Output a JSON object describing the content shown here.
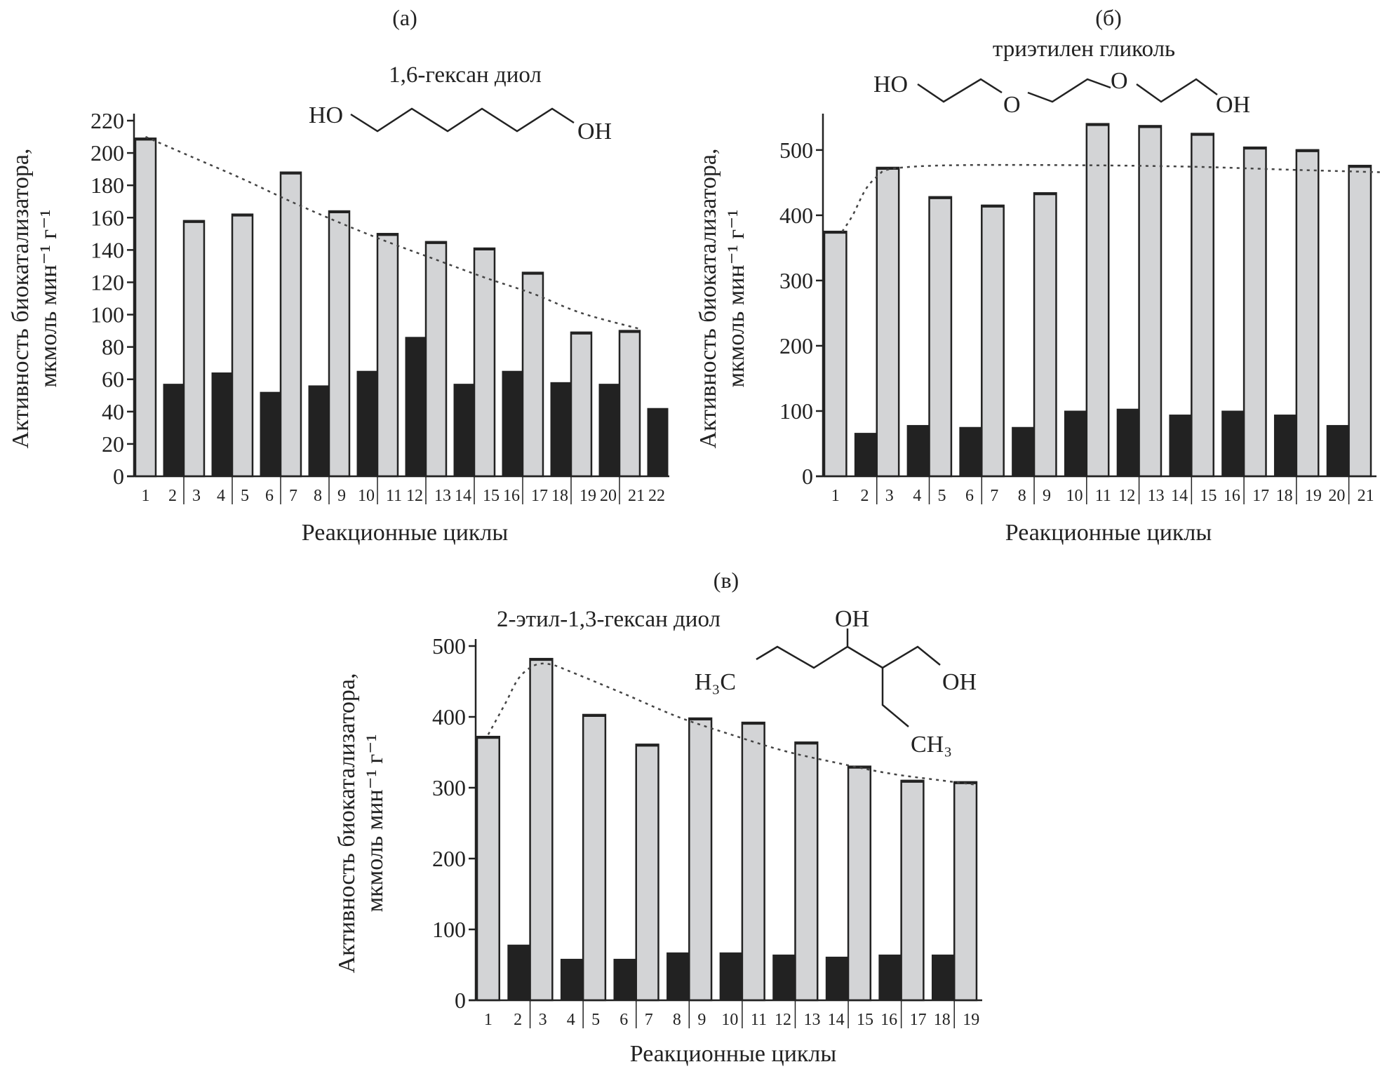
{
  "chart_data": [
    {
      "type": "bar",
      "panel_label": "(а)",
      "compound": "1,6-гексан диол",
      "structure_labels": {
        "left": "HO",
        "right": "OH"
      },
      "ylabel": [
        "Активность биокатализатора,",
        "мкмоль мин⁻¹ г⁻¹"
      ],
      "xlabel": "Реакционные циклы",
      "ylim": [
        0,
        220
      ],
      "yticks": [
        0,
        20,
        40,
        60,
        80,
        100,
        120,
        140,
        160,
        180,
        200,
        220
      ],
      "categories": [
        "1",
        "2",
        "3",
        "4",
        "5",
        "6",
        "7",
        "8",
        "9",
        "10",
        "11",
        "12",
        "13",
        "14",
        "15",
        "16",
        "17",
        "18",
        "19",
        "20",
        "21",
        "22"
      ],
      "values": [
        209,
        57,
        158,
        64,
        162,
        52,
        188,
        56,
        164,
        65,
        150,
        86,
        145,
        57,
        141,
        65,
        126,
        58,
        89,
        57,
        90,
        42
      ],
      "bar_colors": {
        "odd": "#d3d4d6",
        "even": "#222222"
      },
      "trend": [
        [
          1,
          210
        ],
        [
          3,
          197
        ],
        [
          5,
          184
        ],
        [
          7,
          170
        ],
        [
          9,
          157
        ],
        [
          11,
          145
        ],
        [
          13,
          134
        ],
        [
          15,
          123
        ],
        [
          17,
          113
        ],
        [
          19,
          101
        ],
        [
          21.3,
          91
        ]
      ],
      "grid": false
    },
    {
      "type": "bar",
      "panel_label": "(б)",
      "compound": "триэтилен гликоль",
      "structure_labels": {
        "left": "HO",
        "o1": "O",
        "o2": "O",
        "right": "OH"
      },
      "ylabel": [
        "Активность биокатализатора,",
        "мкмоль мин⁻¹ г⁻¹"
      ],
      "xlabel": "Реакционные циклы",
      "ylim": [
        0,
        545
      ],
      "yticks": [
        0,
        100,
        200,
        300,
        400,
        500
      ],
      "categories": [
        "1",
        "2",
        "3",
        "4",
        "5",
        "6",
        "7",
        "8",
        "9",
        "10",
        "11",
        "12",
        "13",
        "14",
        "15",
        "16",
        "17",
        "18",
        "19",
        "20",
        "21"
      ],
      "values": [
        375,
        66,
        473,
        78,
        428,
        75,
        415,
        75,
        434,
        100,
        540,
        103,
        537,
        94,
        525,
        100,
        504,
        94,
        500,
        78,
        476
      ],
      "bar_colors": {
        "odd": "#d3d4d6",
        "even": "#222222"
      },
      "trend": [
        [
          1.1,
          375
        ],
        [
          1.5,
          400
        ],
        [
          2,
          440
        ],
        [
          2.5,
          462
        ],
        [
          3,
          470
        ],
        [
          4,
          475
        ],
        [
          6,
          477
        ],
        [
          9,
          477
        ],
        [
          12,
          476
        ],
        [
          15,
          474
        ],
        [
          18,
          470
        ],
        [
          21.6,
          466
        ]
      ],
      "grid": false
    },
    {
      "type": "bar",
      "panel_label": "(в)",
      "compound": "2-этил-1,3-гексан диол",
      "structure_labels": {
        "left": "H₃C",
        "top": "OH",
        "right": "OH",
        "bottom": "CH₃"
      },
      "ylabel": [
        "Активность биокатализатора,",
        "мкмоль мин⁻¹ г⁻¹"
      ],
      "xlabel": "Реакционные циклы",
      "ylim": [
        0,
        500
      ],
      "yticks": [
        0,
        100,
        200,
        300,
        400,
        500
      ],
      "categories": [
        "1",
        "2",
        "3",
        "4",
        "5",
        "6",
        "7",
        "8",
        "9",
        "10",
        "11",
        "12",
        "13",
        "14",
        "15",
        "16",
        "17",
        "18",
        "19"
      ],
      "values": [
        372,
        78,
        482,
        58,
        403,
        58,
        361,
        67,
        398,
        67,
        392,
        64,
        364,
        61,
        330,
        64,
        310,
        64,
        308
      ],
      "bar_colors": {
        "odd": "#d3d4d6",
        "even": "#222222"
      },
      "trend": [
        [
          1,
          375
        ],
        [
          1.5,
          420
        ],
        [
          2,
          455
        ],
        [
          2.6,
          473
        ],
        [
          3.2,
          474
        ],
        [
          4,
          463
        ],
        [
          6,
          432
        ],
        [
          8,
          400
        ],
        [
          10,
          375
        ],
        [
          12,
          352
        ],
        [
          14,
          335
        ],
        [
          16,
          320
        ],
        [
          18,
          310
        ],
        [
          19.3,
          304
        ]
      ],
      "grid": false
    }
  ]
}
